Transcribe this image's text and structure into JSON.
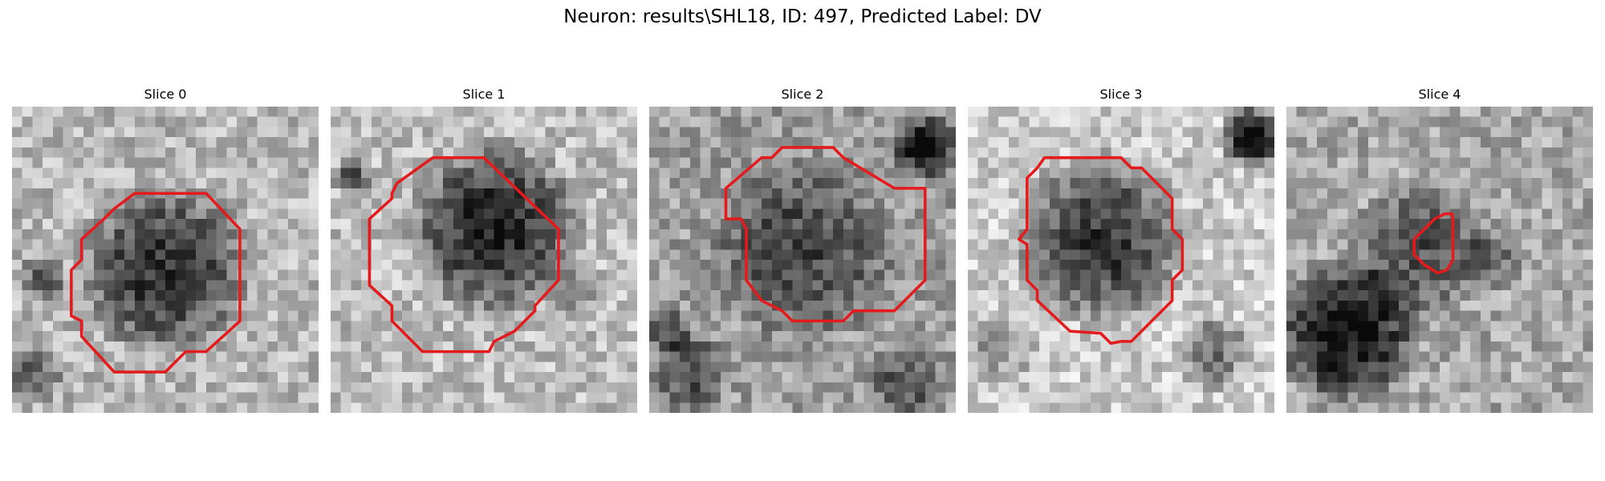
{
  "figure": {
    "title": "Neuron: results\\SHL18, ID: 497, Predicted Label: DV"
  },
  "overlay_color": "#e41a1c",
  "panels": [
    {
      "title": "Slice 0",
      "image_kind": "grayscale-microscopy-crop",
      "contour": "red-cell-outline"
    },
    {
      "title": "Slice 1",
      "image_kind": "grayscale-microscopy-crop",
      "contour": "red-cell-outline"
    },
    {
      "title": "Slice 2",
      "image_kind": "grayscale-microscopy-crop",
      "contour": "red-cell-outline"
    },
    {
      "title": "Slice 3",
      "image_kind": "grayscale-microscopy-crop",
      "contour": "red-cell-outline"
    },
    {
      "title": "Slice 4",
      "image_kind": "grayscale-microscopy-crop",
      "contour": "red-cell-outline"
    }
  ]
}
